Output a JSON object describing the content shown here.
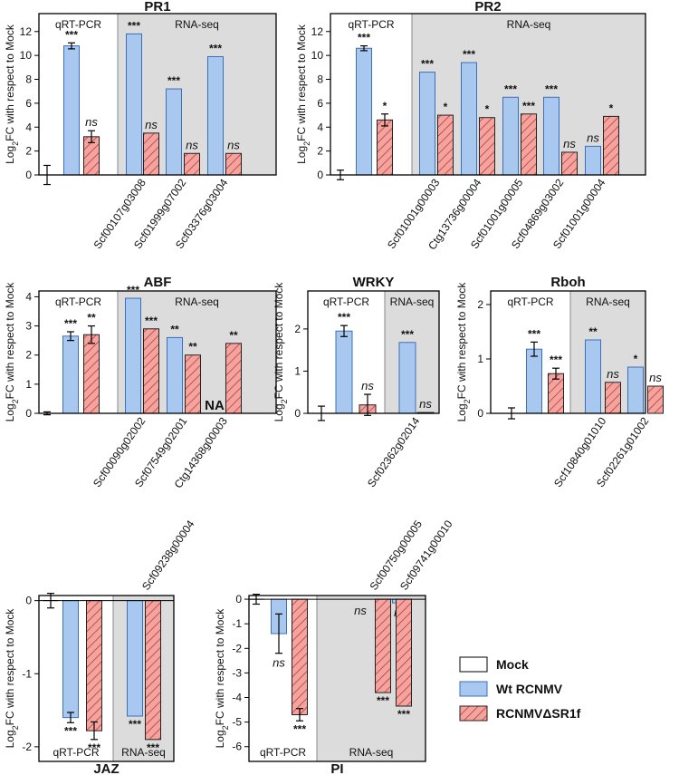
{
  "colors": {
    "mock": "#ffffff",
    "wt": "#a9c8f0",
    "wt_stroke": "#3d6fb8",
    "mut_fill": "#f3a4a0",
    "mut_hatch": "#c0392b",
    "rnaseq_bg": "#dcdcdc",
    "axis": "#000000"
  },
  "legend": {
    "items": [
      {
        "key": "mock",
        "label": "Mock"
      },
      {
        "key": "wt",
        "label": "Wt RCNMV"
      },
      {
        "key": "mut",
        "label": "RCNMVΔSR1f"
      }
    ]
  },
  "section_labels": {
    "qrt": "qRT-PCR",
    "rnaseq": "RNA-seq"
  },
  "chart_data": [
    {
      "id": "pr1",
      "title": "PR1",
      "type": "bar",
      "ylabel": "Log2FC with respect to Mock",
      "ylim": [
        0,
        13.5
      ],
      "yticks": [
        0,
        2,
        4,
        6,
        8,
        10,
        12
      ],
      "ytick_labels": [
        "0",
        "2",
        "4",
        "6",
        "8",
        "10",
        "12"
      ],
      "mock": {
        "value": 0,
        "err": 0.8
      },
      "qrt": {
        "wt": {
          "value": 10.8,
          "err": 0.25,
          "sig": "***"
        },
        "mut": {
          "value": 3.2,
          "err": 0.5,
          "sig": "ns"
        }
      },
      "rnaseq": [
        {
          "gene": "Scf00107g03008",
          "wt": {
            "value": 11.8,
            "sig": "***"
          },
          "mut": {
            "value": 3.5,
            "sig": "ns"
          }
        },
        {
          "gene": "Scf01999g07002",
          "wt": {
            "value": 7.2,
            "sig": "***"
          },
          "mut": {
            "value": 1.8,
            "sig": "ns"
          }
        },
        {
          "gene": "Scf03376g03004",
          "wt": {
            "value": 9.9,
            "sig": "***"
          },
          "mut": {
            "value": 1.8,
            "sig": "ns"
          }
        }
      ]
    },
    {
      "id": "pr2",
      "title": "PR2",
      "type": "bar",
      "ylabel": "Log2FC with respect to Mock",
      "ylim": [
        0,
        13.5
      ],
      "yticks": [
        0,
        2,
        4,
        6,
        8,
        10,
        12
      ],
      "ytick_labels": [
        "0",
        "2",
        "4",
        "6",
        "8",
        "10",
        "12"
      ],
      "mock": {
        "value": 0,
        "err": 0.4
      },
      "qrt": {
        "wt": {
          "value": 10.6,
          "err": 0.2,
          "sig": "***"
        },
        "mut": {
          "value": 4.6,
          "err": 0.5,
          "sig": "*"
        }
      },
      "rnaseq": [
        {
          "gene": "Scf01001g00003",
          "wt": {
            "value": 8.6,
            "sig": "***"
          },
          "mut": {
            "value": 5.0,
            "sig": "*"
          }
        },
        {
          "gene": "Ctg13736g00004",
          "wt": {
            "value": 9.4,
            "sig": "***"
          },
          "mut": {
            "value": 4.8,
            "sig": "*"
          }
        },
        {
          "gene": "Scf01001g00005",
          "wt": {
            "value": 6.5,
            "sig": "***"
          },
          "mut": {
            "value": 5.1,
            "sig": "***"
          }
        },
        {
          "gene": "Scf04869g03002",
          "wt": {
            "value": 6.5,
            "sig": "***"
          },
          "mut": {
            "value": 1.9,
            "sig": "ns"
          }
        },
        {
          "gene": "Scf01001g00004",
          "wt": {
            "value": 2.4,
            "sig": "ns"
          },
          "mut": {
            "value": 4.9,
            "sig": "*"
          }
        }
      ]
    },
    {
      "id": "abf",
      "title": "ABF",
      "type": "bar",
      "ylabel": "Log2FC with respect to Mock",
      "ylim": [
        0,
        4.2
      ],
      "yticks": [
        0,
        1,
        2,
        3,
        4
      ],
      "ytick_labels": [
        "0",
        "1",
        "2",
        "3",
        "4"
      ],
      "mock": {
        "value": 0,
        "err": 0.05
      },
      "qrt": {
        "wt": {
          "value": 2.65,
          "err": 0.15,
          "sig": "***"
        },
        "mut": {
          "value": 2.7,
          "err": 0.3,
          "sig": "**"
        }
      },
      "rnaseq": [
        {
          "gene": "Scf00090g02002",
          "wt": {
            "value": 3.95,
            "sig": "***"
          },
          "mut": {
            "value": 2.9,
            "sig": "***"
          }
        },
        {
          "gene": "Scf07549g02001",
          "wt": {
            "value": 2.6,
            "sig": "**"
          },
          "mut": {
            "value": 2.0,
            "sig": "**"
          }
        },
        {
          "gene": "Ctg14368g00003",
          "wt": {
            "value": null,
            "sig": "NA"
          },
          "mut": {
            "value": 2.4,
            "sig": "**"
          }
        }
      ]
    },
    {
      "id": "wrky",
      "title": "WRKY",
      "type": "bar",
      "ylabel": "Log2FC with respect to Mock",
      "ylim": [
        0,
        2.9
      ],
      "yticks": [
        0,
        1,
        2
      ],
      "ytick_labels": [
        "0",
        "1",
        "2"
      ],
      "mock": {
        "value": 0,
        "err": 0.17
      },
      "qrt": {
        "wt": {
          "value": 1.95,
          "err": 0.13,
          "sig": "***"
        },
        "mut": {
          "value": 0.2,
          "err": 0.25,
          "sig": "ns"
        }
      },
      "rnaseq": [
        {
          "gene": "Scf02362g02014",
          "wt": {
            "value": 1.68,
            "sig": "***"
          },
          "mut": {
            "value": 0.02,
            "sig": "ns"
          }
        }
      ]
    },
    {
      "id": "rboh",
      "title": "Rboh",
      "type": "bar",
      "ylabel": "Log2FC with respect to Mock",
      "ylim": [
        0,
        2.25
      ],
      "yticks": [
        0,
        1,
        2
      ],
      "ytick_labels": [
        "0",
        "1",
        "2"
      ],
      "mock": {
        "value": 0,
        "err": 0.1
      },
      "qrt": {
        "wt": {
          "value": 1.18,
          "err": 0.13,
          "sig": "***"
        },
        "mut": {
          "value": 0.73,
          "err": 0.1,
          "sig": "***"
        }
      },
      "rnaseq": [
        {
          "gene": "Scf10840g01010",
          "wt": {
            "value": 1.35,
            "sig": "**"
          },
          "mut": {
            "value": 0.57,
            "sig": "ns"
          }
        },
        {
          "gene": "Scf02261g01002",
          "wt": {
            "value": 0.85,
            "sig": "*"
          },
          "mut": {
            "value": 0.5,
            "sig": "ns"
          }
        }
      ]
    },
    {
      "id": "jaz",
      "title": "JAZ",
      "type": "bar",
      "ylabel": "Log2FC with respect to Mock",
      "ylim": [
        -2.2,
        0.07
      ],
      "yticks": [
        0,
        -1,
        -2
      ],
      "ytick_labels": [
        "0",
        "-1",
        "-2"
      ],
      "mock": {
        "value": 0,
        "err": 0.1
      },
      "qrt": {
        "wt": {
          "value": -1.6,
          "err": 0.07,
          "sig": "***"
        },
        "mut": {
          "value": -1.78,
          "err": 0.12,
          "sig": "***"
        }
      },
      "rnaseq": [
        {
          "gene": "Scf09238g00004",
          "wt": {
            "value": -1.58,
            "sig": "***"
          },
          "mut": {
            "value": -1.9,
            "sig": "***"
          }
        }
      ]
    },
    {
      "id": "pi",
      "title": "PI",
      "type": "bar",
      "ylabel": "Log2FC with respect to Mock",
      "ylim": [
        -6.6,
        0.15
      ],
      "yticks": [
        0,
        -1,
        -2,
        -3,
        -4,
        -5,
        -6
      ],
      "ytick_labels": [
        "0",
        "-1",
        "-2",
        "-3",
        "-4",
        "-5",
        "-6"
      ],
      "mock": {
        "value": 0,
        "err": 0.2
      },
      "qrt": {
        "wt": {
          "value": -1.4,
          "err": 0.8,
          "sig": "ns"
        },
        "mut": {
          "value": -4.7,
          "err": 0.25,
          "sig": "***"
        }
      },
      "rnaseq": [
        {
          "gene": "Scf00750g00005",
          "wt": {
            "value": null,
            "sig": "ns"
          },
          "mut": {
            "value": -3.8,
            "sig": "***"
          }
        },
        {
          "gene": "Scf09741g00010",
          "wt": {
            "value": -0.15,
            "sig": "ns"
          },
          "mut": {
            "value": -4.35,
            "sig": "***"
          }
        }
      ]
    }
  ]
}
